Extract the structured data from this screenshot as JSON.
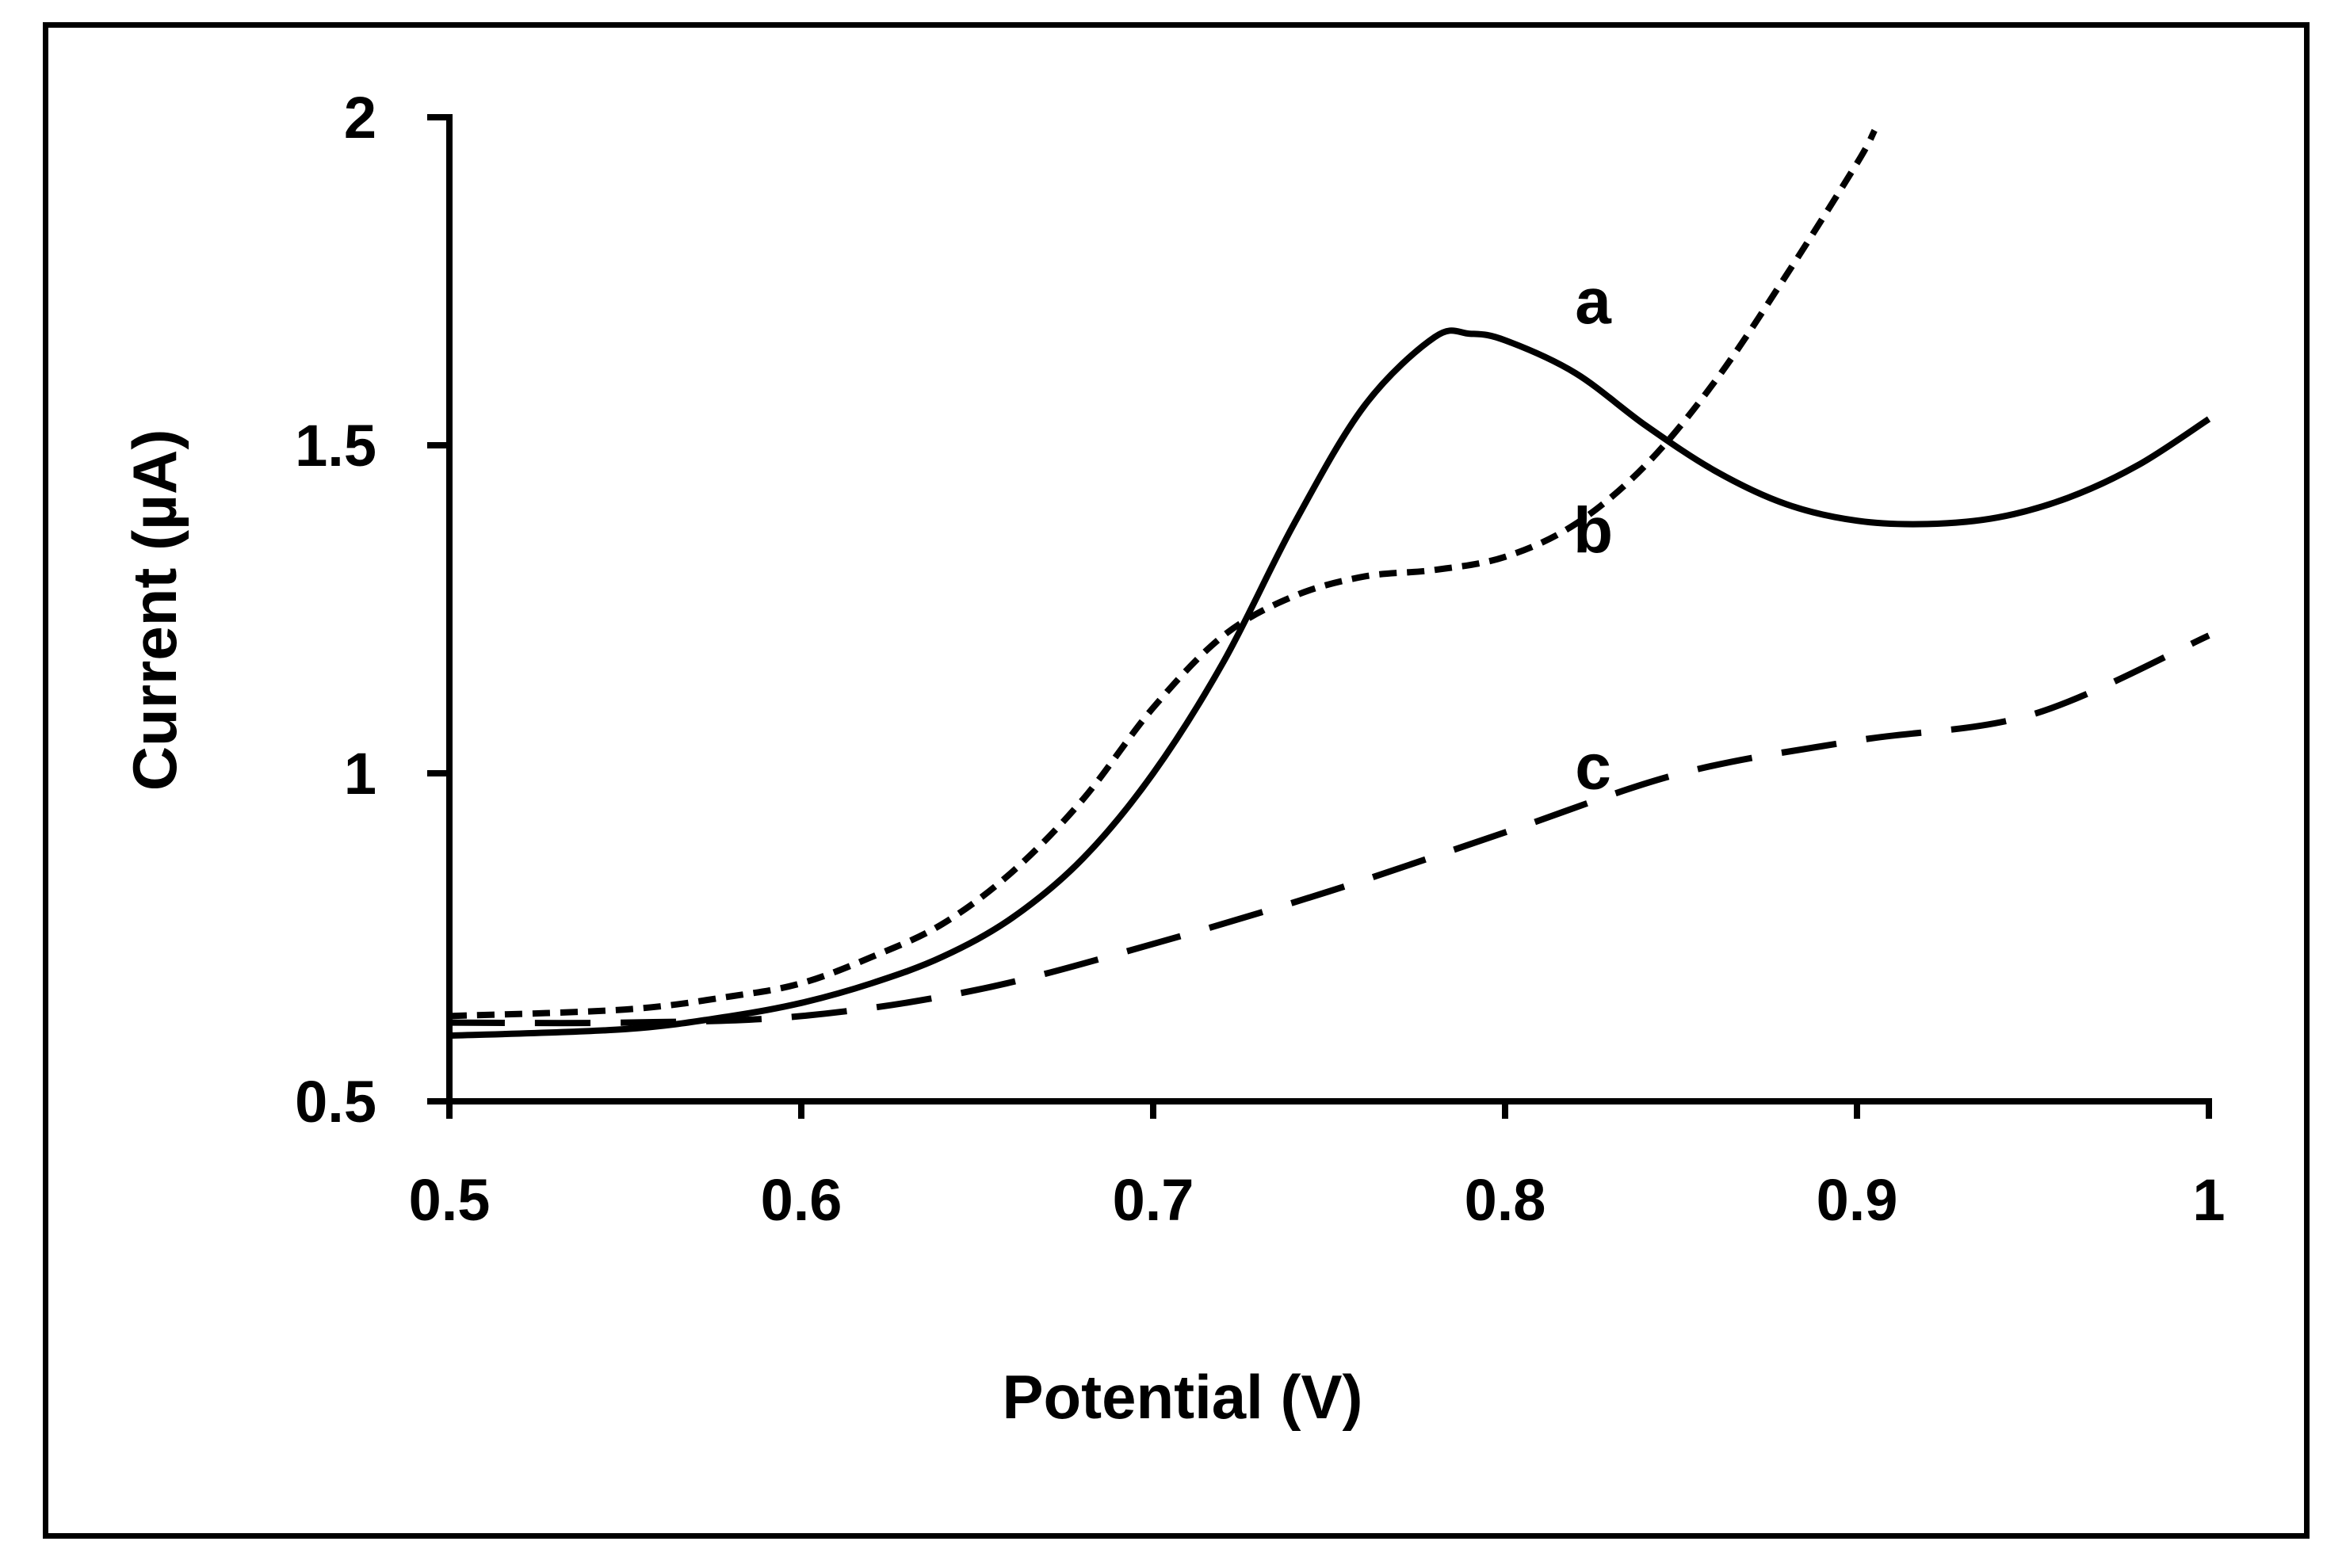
{
  "chart_data": {
    "type": "line",
    "title": "",
    "xlabel": "Potential (V)",
    "ylabel": "Current (µA)",
    "xlim": [
      0.5,
      1.0
    ],
    "ylim": [
      0.5,
      2.0
    ],
    "x_ticks": [
      0.5,
      0.6,
      0.7,
      0.8,
      0.9,
      1.0
    ],
    "x_tick_labels": [
      "0.5",
      "0.6",
      "0.7",
      "0.8",
      "0.9",
      "1"
    ],
    "y_ticks": [
      0.5,
      1.0,
      1.5,
      2.0
    ],
    "y_tick_labels": [
      "0.5",
      "1",
      "1.5",
      "2"
    ],
    "grid": false,
    "series": [
      {
        "name": "a",
        "style": "solid",
        "color": "#000000",
        "x": [
          0.5,
          0.55,
          0.58,
          0.6,
          0.62,
          0.64,
          0.66,
          0.68,
          0.7,
          0.72,
          0.74,
          0.76,
          0.78,
          0.79,
          0.8,
          0.82,
          0.84,
          0.86,
          0.88,
          0.9,
          0.92,
          0.94,
          0.96,
          0.98,
          1.0
        ],
        "y": [
          0.6,
          0.61,
          0.63,
          0.65,
          0.68,
          0.72,
          0.78,
          0.87,
          1.0,
          1.17,
          1.38,
          1.56,
          1.665,
          1.67,
          1.66,
          1.61,
          1.53,
          1.46,
          1.41,
          1.385,
          1.38,
          1.39,
          1.42,
          1.47,
          1.54
        ]
      },
      {
        "name": "b",
        "style": "dotted",
        "color": "#000000",
        "x": [
          0.5,
          0.55,
          0.58,
          0.6,
          0.62,
          0.64,
          0.66,
          0.68,
          0.7,
          0.72,
          0.74,
          0.76,
          0.78,
          0.8,
          0.82,
          0.84,
          0.86,
          0.88,
          0.9,
          0.905
        ],
        "y": [
          0.63,
          0.64,
          0.66,
          0.68,
          0.72,
          0.77,
          0.85,
          0.96,
          1.1,
          1.21,
          1.27,
          1.3,
          1.31,
          1.33,
          1.38,
          1.47,
          1.6,
          1.76,
          1.93,
          1.98
        ]
      },
      {
        "name": "c",
        "style": "dashed",
        "color": "#000000",
        "x": [
          0.5,
          0.55,
          0.6,
          0.65,
          0.7,
          0.75,
          0.8,
          0.85,
          0.9,
          0.95,
          1.0
        ],
        "y": [
          0.62,
          0.62,
          0.63,
          0.67,
          0.74,
          0.82,
          0.91,
          1.0,
          1.05,
          1.09,
          1.21
        ]
      }
    ],
    "annotations": [
      {
        "text": "a",
        "series": "a",
        "x": 0.825,
        "y": 1.72
      },
      {
        "text": "b",
        "series": "b",
        "x": 0.825,
        "y": 1.37
      },
      {
        "text": "c",
        "series": "c",
        "x": 0.825,
        "y": 1.01
      }
    ]
  }
}
